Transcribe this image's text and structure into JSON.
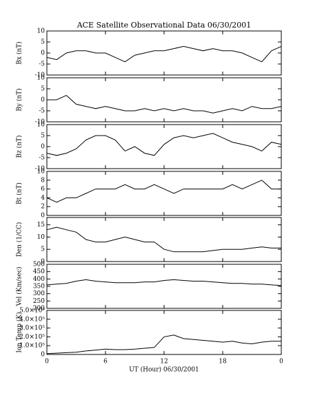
{
  "chart_data": [
    {
      "type": "line",
      "title": "ACE Satellite Observational Data   06/30/2001",
      "ylabel": "Bx (nT)",
      "x": [
        0,
        1,
        2,
        3,
        4,
        5,
        6,
        7,
        8,
        9,
        10,
        11,
        12,
        13,
        14,
        15,
        16,
        17,
        18,
        19,
        20,
        21,
        22,
        23,
        24
      ],
      "values": [
        -2,
        -3,
        0,
        1,
        1,
        0,
        0,
        -2,
        -4,
        -1,
        0,
        1,
        1,
        2,
        3,
        2,
        1,
        2,
        1,
        1,
        0,
        -2,
        -4,
        1,
        3
      ],
      "color": "#000000",
      "xlim": [
        0,
        24
      ],
      "ylim": [
        -10,
        10
      ],
      "yticks": [
        -10,
        -5,
        0,
        5,
        10
      ]
    },
    {
      "type": "line",
      "ylabel": "By (nT)",
      "x": [
        0,
        1,
        2,
        3,
        4,
        5,
        6,
        7,
        8,
        9,
        10,
        11,
        12,
        13,
        14,
        15,
        16,
        17,
        18,
        19,
        20,
        21,
        22,
        23,
        24
      ],
      "values": [
        0,
        0,
        2,
        -2,
        -3,
        -4,
        -3,
        -4,
        -5,
        -5,
        -4,
        -5,
        -4,
        -5,
        -4,
        -5,
        -5,
        -6,
        -5,
        -4,
        -5,
        -3,
        -4,
        -4,
        -3
      ],
      "color": "#000000",
      "xlim": [
        0,
        24
      ],
      "ylim": [
        -10,
        10
      ],
      "yticks": [
        -10,
        -5,
        0,
        5,
        10
      ]
    },
    {
      "type": "line",
      "ylabel": "Bz (nT)",
      "x": [
        0,
        1,
        2,
        3,
        4,
        5,
        6,
        7,
        8,
        9,
        10,
        11,
        12,
        13,
        14,
        15,
        16,
        17,
        18,
        19,
        20,
        21,
        22,
        23,
        24
      ],
      "values": [
        -3,
        -4,
        -3,
        -1,
        3,
        5,
        5,
        3,
        -2,
        0,
        -3,
        -4,
        1,
        4,
        5,
        4,
        5,
        6,
        4,
        2,
        1,
        0,
        -2,
        2,
        1
      ],
      "color": "#000000",
      "xlim": [
        0,
        24
      ],
      "ylim": [
        -10,
        10
      ],
      "yticks": [
        -10,
        -5,
        0,
        5,
        10
      ]
    },
    {
      "type": "line",
      "ylabel": "Bt (nT)",
      "x": [
        0,
        1,
        2,
        3,
        4,
        5,
        6,
        7,
        8,
        9,
        10,
        11,
        12,
        13,
        14,
        15,
        16,
        17,
        18,
        19,
        20,
        21,
        22,
        23,
        24
      ],
      "values": [
        4,
        3,
        4,
        4,
        5,
        6,
        6,
        6,
        7,
        6,
        6,
        7,
        6,
        5,
        6,
        6,
        6,
        6,
        6,
        7,
        6,
        7,
        8,
        6,
        6
      ],
      "color": "#000000",
      "xlim": [
        0,
        24
      ],
      "ylim": [
        0,
        10
      ],
      "yticks": [
        0,
        2,
        4,
        6,
        8,
        10
      ]
    },
    {
      "type": "line",
      "ylabel": "Den (1/CC)",
      "x": [
        0,
        1,
        2,
        3,
        4,
        5,
        6,
        7,
        8,
        9,
        10,
        11,
        12,
        13,
        14,
        15,
        16,
        17,
        18,
        19,
        20,
        21,
        22,
        23,
        24
      ],
      "values": [
        13,
        14,
        13,
        12,
        9,
        8,
        8,
        9,
        10,
        9,
        8,
        8,
        5,
        4,
        4,
        4,
        4,
        4.5,
        5,
        5,
        5,
        5.5,
        6,
        5.5,
        5.5
      ],
      "color": "#000000",
      "xlim": [
        0,
        24
      ],
      "ylim": [
        0,
        18
      ],
      "yticks": [
        0,
        5,
        10,
        15
      ]
    },
    {
      "type": "line",
      "ylabel": "Vel (Km/sec)",
      "x": [
        0,
        1,
        2,
        3,
        4,
        5,
        6,
        7,
        8,
        9,
        10,
        11,
        12,
        13,
        14,
        15,
        16,
        17,
        18,
        19,
        20,
        21,
        22,
        23,
        24
      ],
      "values": [
        360,
        365,
        370,
        385,
        395,
        385,
        380,
        375,
        375,
        375,
        380,
        380,
        390,
        395,
        390,
        385,
        385,
        380,
        375,
        370,
        370,
        365,
        365,
        360,
        355
      ],
      "color": "#000000",
      "xlim": [
        0,
        24
      ],
      "ylim": [
        200,
        500
      ],
      "yticks": [
        200,
        250,
        300,
        350,
        400,
        450,
        500
      ]
    },
    {
      "type": "line",
      "ylabel": "Ion Temp (K)",
      "xlabel": "UT (Hour)  06/30/2001",
      "x": [
        0,
        1,
        2,
        3,
        4,
        5,
        6,
        7,
        8,
        9,
        10,
        11,
        12,
        13,
        14,
        15,
        16,
        17,
        18,
        19,
        20,
        21,
        22,
        23,
        24
      ],
      "values": [
        10000,
        15000,
        20000,
        25000,
        40000,
        50000,
        60000,
        55000,
        55000,
        60000,
        70000,
        80000,
        200000,
        220000,
        180000,
        170000,
        160000,
        150000,
        140000,
        150000,
        130000,
        120000,
        140000,
        150000,
        150000
      ],
      "color": "#000000",
      "xlim": [
        0,
        24
      ],
      "ylim": [
        0,
        500000
      ],
      "yticks": [
        0,
        {
          "value": 100000,
          "label": "1.0×10⁵"
        },
        {
          "value": 200000,
          "label": "2.0×10⁵"
        },
        {
          "value": 300000,
          "label": "3.0×10⁵"
        },
        {
          "value": 400000,
          "label": "4.0×10⁵"
        },
        {
          "value": 500000,
          "label": "5.0×10⁵"
        }
      ],
      "xticks": [
        0,
        6,
        12,
        18,
        {
          "value": 24,
          "label": "0"
        }
      ]
    }
  ]
}
